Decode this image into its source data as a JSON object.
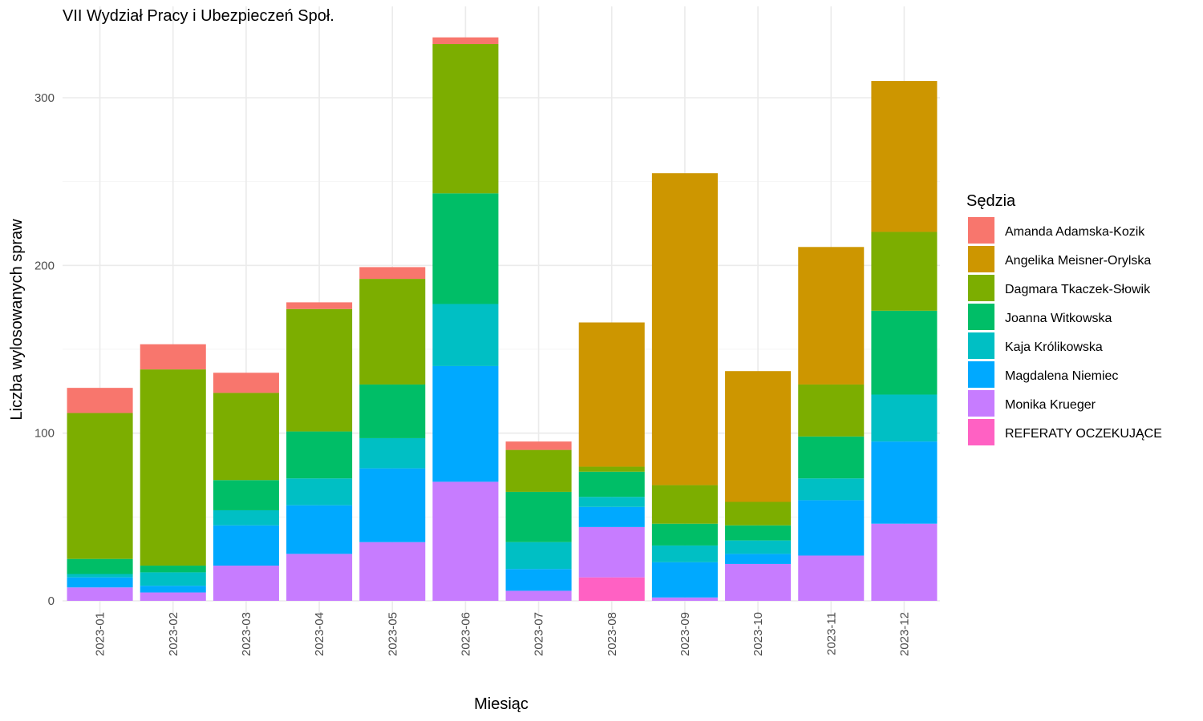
{
  "chart_data": {
    "type": "bar",
    "stacked": true,
    "title": "VII Wydział Pracy i Ubezpieczeń Społ.",
    "xlabel": "Miesiąc",
    "ylabel": "Liczba wylosowanych spraw",
    "ylim": [
      0,
      340
    ],
    "yticks": [
      0,
      100,
      200,
      300
    ],
    "grid": true,
    "legend_title": "Sędzia",
    "legend_position": "right",
    "categories": [
      "2023-01",
      "2023-02",
      "2023-03",
      "2023-04",
      "2023-05",
      "2023-06",
      "2023-07",
      "2023-08",
      "2023-09",
      "2023-10",
      "2023-11",
      "2023-12"
    ],
    "series": [
      {
        "name": "REFERATY OCZEKUJĄCE",
        "color": "#FF61C3",
        "values": [
          0,
          0,
          0,
          0,
          0,
          0,
          0,
          14,
          0,
          0,
          0,
          0
        ]
      },
      {
        "name": "Monika Krueger",
        "color": "#C77CFF",
        "values": [
          8,
          5,
          21,
          28,
          35,
          71,
          6,
          30,
          2,
          22,
          27,
          46
        ]
      },
      {
        "name": "Magdalena Niemiec",
        "color": "#00A9FF",
        "values": [
          6,
          4,
          24,
          29,
          44,
          69,
          13,
          12,
          21,
          6,
          33,
          49
        ]
      },
      {
        "name": "Kaja Królikowska",
        "color": "#00BFC4",
        "values": [
          2,
          8,
          9,
          16,
          18,
          37,
          16,
          6,
          10,
          8,
          13,
          28
        ]
      },
      {
        "name": "Joanna Witkowska",
        "color": "#00BE67",
        "values": [
          9,
          4,
          18,
          28,
          32,
          66,
          30,
          15,
          13,
          9,
          25,
          50
        ]
      },
      {
        "name": "Dagmara Tkaczek-Słowik",
        "color": "#7CAE00",
        "values": [
          87,
          117,
          52,
          73,
          63,
          89,
          25,
          3,
          23,
          14,
          31,
          47
        ]
      },
      {
        "name": "Angelika Meisner-Orylska",
        "color": "#CD9600",
        "values": [
          0,
          0,
          0,
          0,
          0,
          0,
          0,
          86,
          186,
          78,
          82,
          90
        ]
      },
      {
        "name": "Amanda Adamska-Kozik",
        "color": "#F8766D",
        "values": [
          15,
          15,
          12,
          4,
          7,
          4,
          5,
          0,
          0,
          0,
          0,
          0
        ]
      }
    ],
    "legend_order": [
      "Amanda Adamska-Kozik",
      "Angelika Meisner-Orylska",
      "Dagmara Tkaczek-Słowik",
      "Joanna Witkowska",
      "Kaja Królikowska",
      "Magdalena Niemiec",
      "Monika Krueger",
      "REFERATY OCZEKUJĄCE"
    ]
  }
}
